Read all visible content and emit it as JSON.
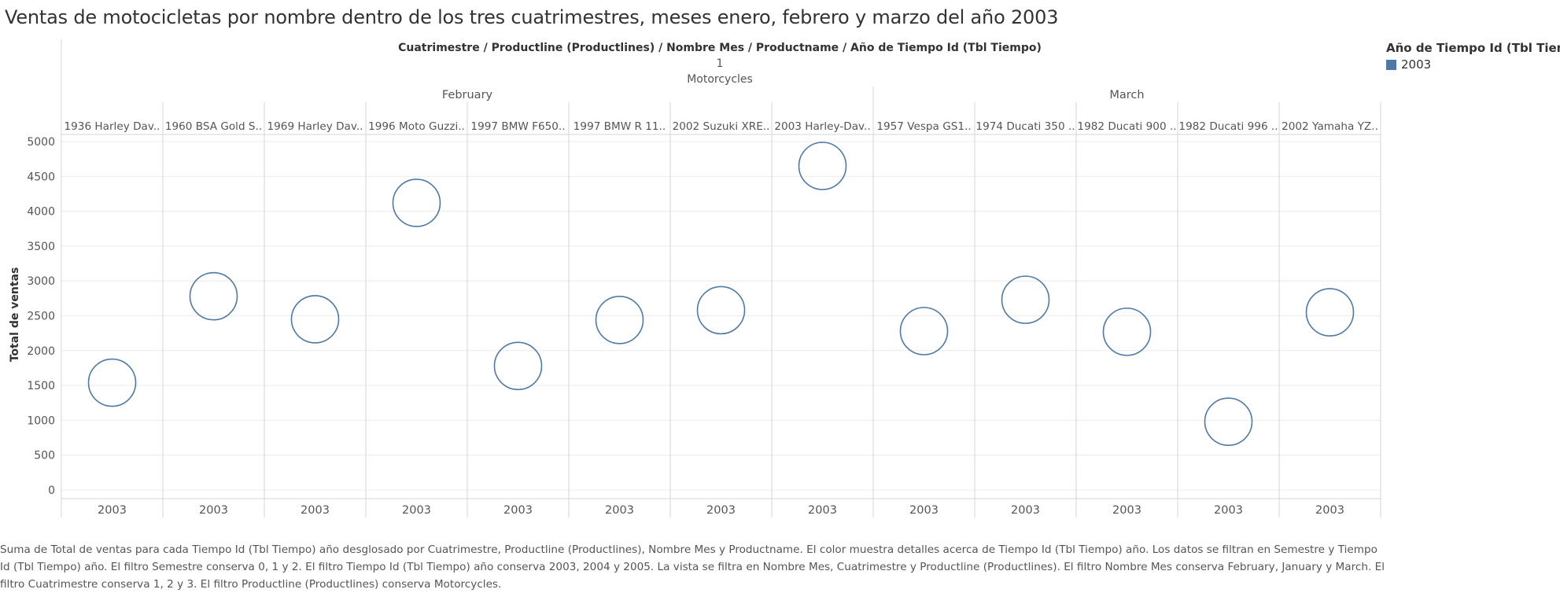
{
  "title": "Ventas de motocicletas por nombre dentro de los tres cuatrimestres, meses enero, febrero y marzo del año 2003",
  "caption": "Suma de Total de ventas para cada Tiempo Id (Tbl Tiempo) año desglosado por Cuatrimestre, Productline (Productlines), Nombre Mes y Productname.  El color muestra detalles acerca de Tiempo Id (Tbl Tiempo) año. Los datos se filtran en Semestre y Tiempo Id (Tbl Tiempo) año. El filtro Semestre conserva 0, 1 y 2. El filtro Tiempo Id (Tbl Tiempo) año conserva 2003, 2004 y 2005. La vista se filtra en Nombre Mes, Cuatrimestre y Productline (Productlines). El filtro Nombre Mes conserva February, January y March. El filtro Cuatrimestre conserva 1, 2 y 3. El filtro Productline (Productlines) conserva Motorcycles.",
  "legend": {
    "title": "Año de Tiempo Id (Tbl Tiempo)",
    "items": [
      {
        "label": "2003",
        "color": "#4e79a7"
      }
    ]
  },
  "colors": {
    "mark": "#4e79a7",
    "grid": "#ececec",
    "divider": "#d4d4d4"
  },
  "chart_data": {
    "type": "scatter",
    "header_path": "Cuatrimestre  /  Productline (Productlines)  /  Nombre Mes  /  Productname  /  Año de Tiempo Id (Tbl Tiempo)",
    "cuatrimestre": "1",
    "productline": "Motorcycles",
    "months": [
      {
        "name": "February",
        "count": 8
      },
      {
        "name": "March",
        "count": 5
      }
    ],
    "categories": [
      "1936 Harley Dav..",
      "1960 BSA Gold S..",
      "1969 Harley Dav..",
      "1996 Moto Guzzi..",
      "1997 BMW F650..",
      "1997 BMW R 11..",
      "2002 Suzuki XRE..",
      "2003 Harley-Dav..",
      "1957 Vespa GS1..",
      "1974 Ducati 350 ..",
      "1982 Ducati 900 ..",
      "1982 Ducati 996 ..",
      "2002 Yamaha YZ.."
    ],
    "x_labels": [
      "2003",
      "2003",
      "2003",
      "2003",
      "2003",
      "2003",
      "2003",
      "2003",
      "2003",
      "2003",
      "2003",
      "2003",
      "2003"
    ],
    "series": [
      {
        "name": "2003",
        "values": [
          1540,
          2780,
          2450,
          4120,
          1780,
          2440,
          2580,
          4650,
          2280,
          2730,
          2270,
          980,
          2550
        ]
      }
    ],
    "ylabel": "Total de ventas",
    "ylim": [
      0,
      5200
    ],
    "yticks": [
      0,
      500,
      1000,
      1500,
      2000,
      2500,
      3000,
      3500,
      4000,
      4500,
      5000
    ],
    "grid": true,
    "legend_position": "top-right"
  }
}
